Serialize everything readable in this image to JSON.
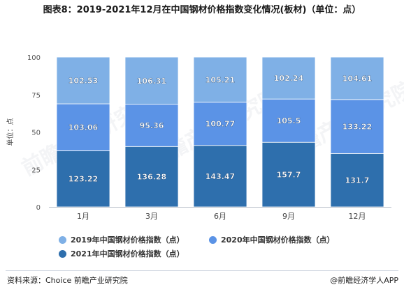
{
  "title": "图表8：2019-2021年12月在中国钢材价格指数变化情况(板材)（单位：点）",
  "source": "资料来源：Choice 前瞻产业研究院",
  "brand": "@前瞻经济学人APP",
  "watermark": "前瞻产业研究院",
  "colors": {
    "s2019": "#7fb0e6",
    "s2020": "#5b93e6",
    "s2021": "#2e6fad"
  },
  "chart_data": {
    "type": "bar",
    "stacked": true,
    "normalized": true,
    "categories": [
      "1月",
      "3月",
      "6月",
      "9月",
      "12月"
    ],
    "series": [
      {
        "name": "2021年中国钢材价格指数（点）",
        "values": [
          123.22,
          136.28,
          143.47,
          157.7,
          131.7
        ]
      },
      {
        "name": "2020年中国钢材价格指数（点）",
        "values": [
          103.06,
          95.36,
          100.77,
          105.5,
          133.22
        ]
      },
      {
        "name": "2019年中国钢材价格指数（点）",
        "values": [
          102.53,
          106.31,
          105.21,
          102.24,
          104.61
        ]
      }
    ],
    "ylabel": "单位：点",
    "yticks": [
      0,
      25,
      50,
      75,
      100
    ],
    "ylim": [
      0,
      100
    ],
    "grid": false,
    "legend_position": "bottom"
  }
}
